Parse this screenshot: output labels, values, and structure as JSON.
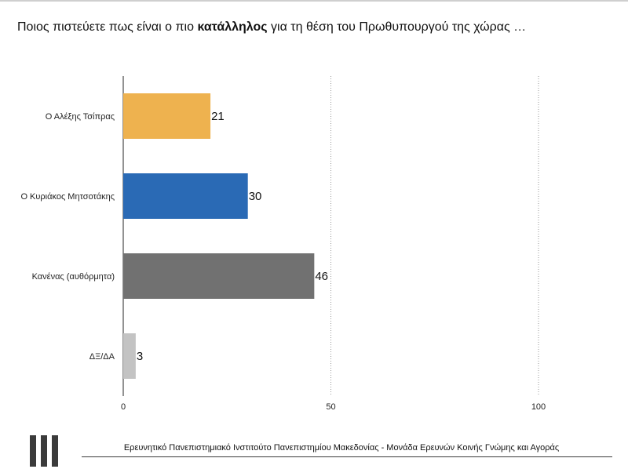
{
  "title": {
    "before": "Ποιος πιστεύετε πως είναι ο πιο ",
    "bold": "κατάλληλος",
    "after": " για τη θέση του Πρωθυπουργού της χώρας …"
  },
  "footer": {
    "text": "Ερευνητικό Πανεπιστημιακό Ινστιτούτο Πανεπιστημίου Μακεδονίας - Μονάδα Ερευνών Κοινής Γνώμης και Αγοράς"
  },
  "chart_data": {
    "type": "bar",
    "orientation": "horizontal",
    "categories": [
      "Ο Αλέξης Τσίπρας",
      "Ο Κυριάκος Μητσοτάκης",
      "Κανένας (αυθόρμητα)",
      "ΔΞ/ΔΑ"
    ],
    "values": [
      21,
      30,
      46,
      3
    ],
    "colors": [
      "#eeb24f",
      "#2a6ab5",
      "#717171",
      "#c3c3c3"
    ],
    "xlim": [
      0,
      100
    ],
    "ticks": [
      0,
      50,
      100
    ],
    "grid": "dotted vertical at 50 and 100",
    "legend": "none"
  }
}
